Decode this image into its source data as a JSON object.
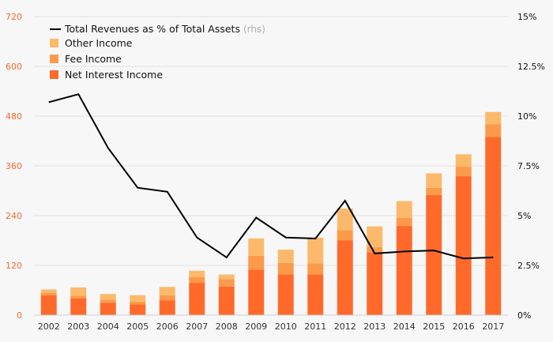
{
  "chart_data": {
    "type": "bar",
    "stacked": true,
    "categories": [
      "2002",
      "2003",
      "2004",
      "2005",
      "2006",
      "2007",
      "2008",
      "2009",
      "2010",
      "2011",
      "2012",
      "2013",
      "2014",
      "2015",
      "2016",
      "2017"
    ],
    "series": [
      {
        "name": "Net Interest Income",
        "color": "#ff6a2b",
        "values": [
          48,
          40,
          30,
          26,
          36,
          78,
          69,
          110,
          98,
          98,
          180,
          152,
          215,
          290,
          335,
          430
        ]
      },
      {
        "name": "Fee Income",
        "color": "#fc9a4a",
        "values": [
          6,
          7,
          7,
          7,
          12,
          14,
          18,
          33,
          28,
          27,
          25,
          12,
          20,
          17,
          23,
          30
        ]
      },
      {
        "name": "Other Income",
        "color": "#fdb96b",
        "values": [
          8,
          20,
          14,
          15,
          20,
          15,
          11,
          42,
          32,
          62,
          52,
          50,
          40,
          35,
          30,
          30
        ]
      }
    ],
    "line_series": {
      "name": "Total Revenues as % of Total Assets",
      "name_suffix": "(rhs)",
      "axis": "right",
      "color": "#000000",
      "values": [
        10.7,
        11.1,
        8.4,
        6.4,
        6.2,
        3.9,
        2.9,
        4.9,
        3.9,
        3.85,
        5.75,
        3.1,
        3.2,
        3.25,
        2.85,
        2.9
      ]
    },
    "ylim_left": [
      0,
      720
    ],
    "ylim_right": [
      0,
      15
    ],
    "yticks_left": [
      "0",
      "120",
      "240",
      "360",
      "480",
      "600",
      "720"
    ],
    "yticks_right": [
      "0%",
      "2.5%",
      "5%",
      "7.5%",
      "10%",
      "12.5%",
      "15%"
    ],
    "grid": true,
    "legend_position": "top-left"
  }
}
